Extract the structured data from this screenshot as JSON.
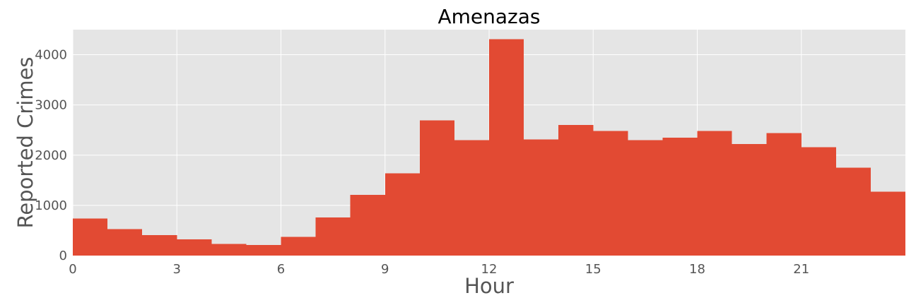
{
  "chart_data": {
    "type": "bar",
    "title": "Amenazas",
    "xlabel": "Hour",
    "ylabel": "Reported Crimes",
    "x_bins": [
      0,
      1,
      2,
      3,
      4,
      5,
      6,
      7,
      8,
      9,
      10,
      11,
      12,
      13,
      14,
      15,
      16,
      17,
      18,
      19,
      20,
      21,
      22,
      23
    ],
    "bin_width": 1,
    "values": [
      740,
      530,
      410,
      320,
      230,
      210,
      370,
      760,
      1210,
      1640,
      2690,
      2300,
      4310,
      2310,
      2600,
      2480,
      2300,
      2350,
      2480,
      2220,
      2440,
      2160,
      1750,
      1270
    ],
    "xlim": [
      0,
      24
    ],
    "ylim": [
      0,
      4500
    ],
    "x_ticks": [
      0,
      3,
      6,
      9,
      12,
      15,
      18,
      21
    ],
    "y_ticks": [
      0,
      1000,
      2000,
      3000,
      4000
    ],
    "grid": true,
    "colors": {
      "bar": "#E24A33",
      "plot_background": "#E5E5E5",
      "grid": "#FFFFFF",
      "tick_text": "#555555",
      "title_text": "#000000"
    }
  }
}
